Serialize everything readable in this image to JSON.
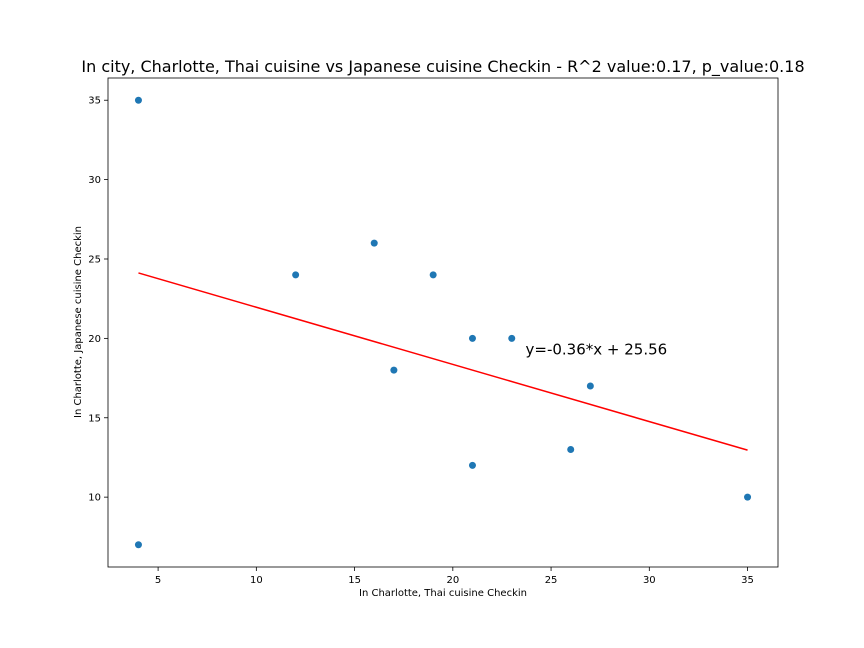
{
  "chart_data": {
    "type": "scatter",
    "title": "In city, Charlotte, Thai cuisine vs Japanese cuisine Checkin - R^2 value:0.17, p_value:0.18",
    "xlabel": "In Charlotte, Thai cuisine Checkin",
    "ylabel": "In Charlotte, Japanese cuisine Checkin",
    "xlim": [
      2.45,
      36.55
    ],
    "ylim": [
      5.6,
      36.4
    ],
    "xticks": [
      5,
      10,
      15,
      20,
      25,
      30,
      35
    ],
    "yticks": [
      10,
      15,
      20,
      25,
      30,
      35
    ],
    "grid": false,
    "points": [
      {
        "x": 4,
        "y": 35
      },
      {
        "x": 4,
        "y": 7
      },
      {
        "x": 12,
        "y": 24
      },
      {
        "x": 16,
        "y": 26
      },
      {
        "x": 17,
        "y": 18
      },
      {
        "x": 19,
        "y": 24
      },
      {
        "x": 21,
        "y": 20
      },
      {
        "x": 21,
        "y": 12
      },
      {
        "x": 23,
        "y": 20
      },
      {
        "x": 26,
        "y": 13
      },
      {
        "x": 27,
        "y": 17
      },
      {
        "x": 35,
        "y": 10
      }
    ],
    "fit_line": {
      "slope": -0.36,
      "intercept": 25.56,
      "x_start": 4,
      "x_end": 35
    },
    "annotation": {
      "text": "y=-0.36*x + 25.56",
      "x": 23.7,
      "y": 19
    },
    "colors": {
      "points": "#1f77b4",
      "fit_line": "#ff0000",
      "axes": "#000000"
    }
  }
}
